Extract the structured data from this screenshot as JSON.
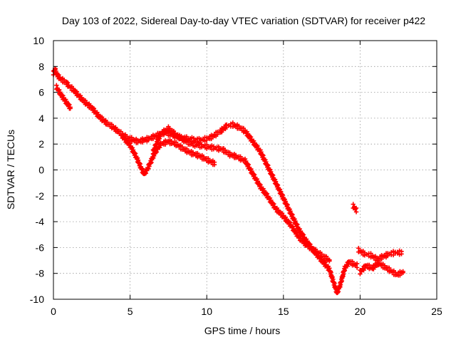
{
  "chart_data": {
    "type": "scatter",
    "title": "Day 103 of 2022, Sidereal Day-to-day VTEC variation (SDTVAR) for receiver p422",
    "xlabel": "GPS time / hours",
    "ylabel": "SDTVAR / TECUs",
    "xlim": [
      0,
      25
    ],
    "ylim": [
      -10,
      10
    ],
    "xticks": [
      0,
      5,
      10,
      15,
      20,
      25
    ],
    "yticks": [
      -10,
      -8,
      -6,
      -4,
      -2,
      0,
      2,
      4,
      6,
      8,
      10
    ],
    "grid": true,
    "marker": "+",
    "color": "#ff0000",
    "series": [
      {
        "name": "main_track",
        "x": [
          0.0,
          0.1,
          0.2,
          0.35,
          0.5,
          0.8,
          1.0,
          1.3,
          1.6,
          2.0,
          2.5,
          3.0,
          3.5,
          3.9,
          4.3,
          4.8,
          5.5,
          6.2,
          6.8,
          7.3,
          8.0,
          8.8,
          9.5,
          10.0,
          10.4,
          10.9,
          11.3,
          11.7,
          12.1,
          12.5,
          13.0,
          13.5,
          14.0,
          14.5,
          15.0,
          15.5,
          16.0,
          16.5,
          17.0,
          17.5,
          18.0,
          18.3,
          18.5,
          18.7,
          19.0,
          19.3,
          19.6,
          19.8
        ],
        "y": [
          7.5,
          7.8,
          7.4,
          7.2,
          7.0,
          6.8,
          6.5,
          6.2,
          5.8,
          5.3,
          4.8,
          4.1,
          3.6,
          3.3,
          2.9,
          2.5,
          2.2,
          2.4,
          2.7,
          2.9,
          2.6,
          2.4,
          2.3,
          2.4,
          2.6,
          3.0,
          3.4,
          3.5,
          3.3,
          3.0,
          2.2,
          1.4,
          0.2,
          -1.0,
          -2.2,
          -3.4,
          -4.6,
          -5.5,
          -6.3,
          -7.0,
          -7.7,
          -8.8,
          -9.5,
          -8.9,
          -7.6,
          -7.1,
          -7.3,
          -7.4
        ]
      },
      {
        "name": "upper_branch",
        "x": [
          0.2,
          0.5,
          0.8,
          1.1
        ],
        "y": [
          6.4,
          5.8,
          5.3,
          4.8
        ]
      },
      {
        "name": "dip_branch",
        "x": [
          4.5,
          5.0,
          5.4,
          5.7,
          5.9,
          6.1,
          6.3,
          6.6,
          7.0,
          7.5,
          8.0,
          8.5,
          9.0,
          9.5,
          10.0,
          10.5
        ],
        "y": [
          2.6,
          1.9,
          1.0,
          0.2,
          -0.3,
          0.0,
          0.5,
          1.3,
          2.0,
          2.2,
          2.0,
          1.6,
          1.3,
          1.1,
          0.8,
          0.5
        ]
      },
      {
        "name": "second_branch",
        "x": [
          6.5,
          7.0,
          7.5,
          8.2,
          9.0,
          10.0,
          11.0,
          11.5,
          12.0,
          12.5,
          13.0,
          13.5,
          14.0,
          14.5,
          15.0,
          15.5,
          16.0,
          16.5,
          17.0,
          17.5,
          18.0
        ],
        "y": [
          1.4,
          2.8,
          3.2,
          2.5,
          2.0,
          1.8,
          1.6,
          1.2,
          1.0,
          0.7,
          -0.3,
          -1.3,
          -2.1,
          -3.0,
          -3.6,
          -4.3,
          -5.2,
          -5.8,
          -6.2,
          -6.6,
          -7.0
        ]
      },
      {
        "name": "late_cluster_a",
        "x": [
          19.9,
          20.3,
          20.7,
          21.1,
          21.5,
          21.9,
          22.3,
          22.7
        ],
        "y": [
          -6.2,
          -6.5,
          -6.6,
          -6.9,
          -6.7,
          -6.5,
          -6.4,
          -6.4
        ]
      },
      {
        "name": "late_cluster_b",
        "x": [
          20.0,
          20.4,
          20.8,
          21.2,
          21.6,
          22.0,
          22.4,
          22.8
        ],
        "y": [
          -7.9,
          -7.4,
          -7.6,
          -7.2,
          -7.5,
          -7.8,
          -8.1,
          -7.9
        ]
      },
      {
        "name": "isolated",
        "x": [
          19.55,
          19.75
        ],
        "y": [
          -2.8,
          -3.1
        ]
      }
    ]
  }
}
